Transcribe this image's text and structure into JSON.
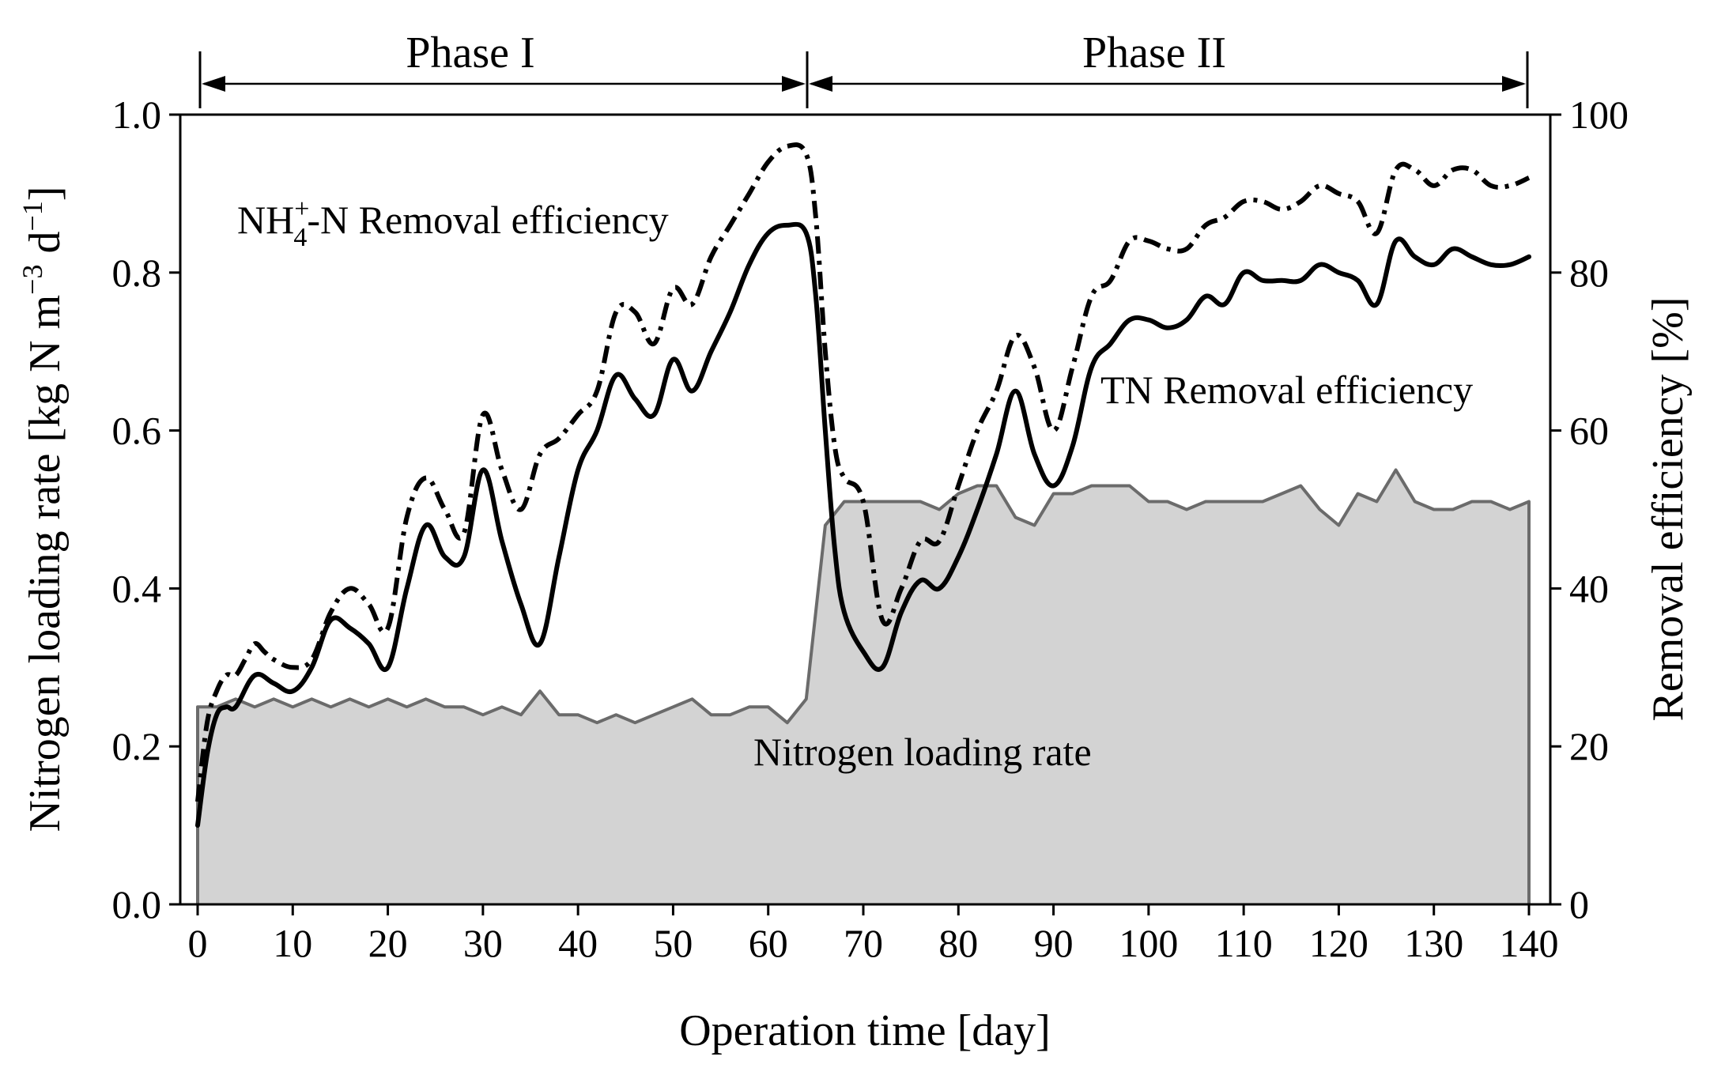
{
  "chart_data": {
    "type": "line",
    "xlabel": "Operation time [day]",
    "ylabel_left": "Nitrogen loading rate [kg N m",
    "ylabel_left_sup1": "−3",
    "ylabel_left_mid": " d",
    "ylabel_left_sup2": "−1",
    "ylabel_left_end": "]",
    "ylabel_right": "Removal efficiency [%]",
    "xlim": [
      0,
      140
    ],
    "ylim_left": [
      0,
      1.0
    ],
    "ylim_right": [
      0,
      100
    ],
    "x_ticks": [
      0,
      10,
      20,
      30,
      40,
      50,
      60,
      70,
      80,
      90,
      100,
      110,
      120,
      130,
      140
    ],
    "y_left_ticks": [
      "0.0",
      "0.2",
      "0.4",
      "0.6",
      "0.8",
      "1.0"
    ],
    "y_right_ticks": [
      "0",
      "20",
      "40",
      "60",
      "80",
      "100"
    ],
    "phases": [
      {
        "label": "Phase I",
        "start": 0,
        "end": 64
      },
      {
        "label": "Phase II",
        "start": 64,
        "end": 140
      }
    ],
    "annotations": {
      "nh4_prefix": "NH",
      "nh4_sup": "+",
      "nh4_sub": "4",
      "nh4_suffix": "-N Removal efficiency",
      "tn": "TN Removal efficiency",
      "nlr": "Nitrogen loading rate"
    },
    "series": [
      {
        "name": "Nitrogen loading rate",
        "axis": "left",
        "style": "filled-area",
        "x": [
          0,
          2,
          4,
          6,
          8,
          10,
          12,
          14,
          16,
          18,
          20,
          22,
          24,
          26,
          28,
          30,
          32,
          34,
          36,
          38,
          40,
          42,
          44,
          46,
          48,
          50,
          52,
          54,
          56,
          58,
          60,
          62,
          64,
          66,
          68,
          70,
          72,
          74,
          76,
          78,
          80,
          82,
          84,
          86,
          88,
          90,
          92,
          94,
          96,
          98,
          100,
          102,
          104,
          106,
          108,
          110,
          112,
          114,
          116,
          118,
          120,
          122,
          124,
          126,
          128,
          130,
          132,
          134,
          136,
          138,
          140
        ],
        "values": [
          0.25,
          0.25,
          0.26,
          0.25,
          0.26,
          0.25,
          0.26,
          0.25,
          0.26,
          0.25,
          0.26,
          0.25,
          0.26,
          0.25,
          0.25,
          0.24,
          0.25,
          0.24,
          0.27,
          0.24,
          0.24,
          0.23,
          0.24,
          0.23,
          0.24,
          0.25,
          0.26,
          0.24,
          0.24,
          0.25,
          0.25,
          0.23,
          0.26,
          0.48,
          0.51,
          0.51,
          0.51,
          0.51,
          0.51,
          0.5,
          0.52,
          0.53,
          0.53,
          0.49,
          0.48,
          0.52,
          0.52,
          0.53,
          0.53,
          0.53,
          0.51,
          0.51,
          0.5,
          0.51,
          0.51,
          0.51,
          0.51,
          0.52,
          0.53,
          0.5,
          0.48,
          0.52,
          0.51,
          0.55,
          0.51,
          0.5,
          0.5,
          0.51,
          0.51,
          0.5,
          0.51
        ]
      },
      {
        "name": "NH4+-N Removal efficiency",
        "axis": "right",
        "style": "dash-dot",
        "x": [
          0,
          1,
          2,
          3,
          4,
          5,
          6,
          7,
          8,
          10,
          12,
          14,
          16,
          18,
          20,
          22,
          24,
          26,
          28,
          30,
          32,
          34,
          36,
          38,
          40,
          42,
          44,
          46,
          48,
          50,
          52,
          54,
          56,
          58,
          60,
          62,
          64,
          65,
          66,
          67,
          68,
          70,
          72,
          74,
          76,
          78,
          80,
          82,
          84,
          86,
          88,
          90,
          92,
          94,
          96,
          98,
          100,
          102,
          104,
          106,
          108,
          110,
          112,
          114,
          116,
          118,
          120,
          122,
          124,
          126,
          128,
          130,
          132,
          134,
          136,
          138,
          140
        ],
        "values": [
          13,
          23,
          27,
          29,
          29,
          31,
          33,
          32,
          31,
          30,
          31,
          37,
          40,
          38,
          35,
          49,
          54,
          50,
          47,
          62,
          55,
          50,
          57,
          59,
          62,
          65,
          75,
          75,
          71,
          78,
          76,
          82,
          86,
          90,
          94,
          96,
          95,
          87,
          70,
          58,
          54,
          51,
          36,
          40,
          46,
          46,
          53,
          60,
          65,
          72,
          68,
          60,
          68,
          77,
          79,
          84,
          84,
          83,
          83,
          86,
          87,
          89,
          89,
          88,
          89,
          91,
          90,
          89,
          85,
          93,
          93,
          91,
          93,
          93,
          91,
          91,
          92
        ]
      },
      {
        "name": "TN Removal efficiency",
        "axis": "right",
        "style": "solid",
        "x": [
          0,
          1,
          2,
          3,
          4,
          6,
          8,
          10,
          12,
          14,
          16,
          18,
          20,
          22,
          24,
          26,
          28,
          30,
          32,
          34,
          36,
          38,
          40,
          42,
          44,
          46,
          48,
          50,
          52,
          54,
          56,
          58,
          60,
          62,
          64,
          65,
          66,
          67,
          68,
          70,
          72,
          74,
          76,
          78,
          80,
          82,
          84,
          86,
          88,
          90,
          92,
          94,
          96,
          98,
          100,
          102,
          104,
          106,
          108,
          110,
          112,
          114,
          116,
          118,
          120,
          122,
          124,
          126,
          128,
          130,
          132,
          134,
          136,
          138,
          140
        ],
        "values": [
          10,
          19,
          24,
          25,
          25,
          29,
          28,
          27,
          30,
          36,
          35,
          33,
          30,
          40,
          48,
          44,
          44,
          55,
          46,
          38,
          33,
          44,
          55,
          60,
          67,
          64,
          62,
          69,
          65,
          70,
          75,
          81,
          85,
          86,
          85,
          77,
          60,
          45,
          37,
          32,
          30,
          37,
          41,
          40,
          44,
          50,
          57,
          65,
          57,
          53,
          58,
          68,
          71,
          74,
          74,
          73,
          74,
          77,
          76,
          80,
          79,
          79,
          79,
          81,
          80,
          79,
          76,
          84,
          82,
          81,
          83,
          82,
          81,
          81,
          82
        ]
      }
    ]
  }
}
